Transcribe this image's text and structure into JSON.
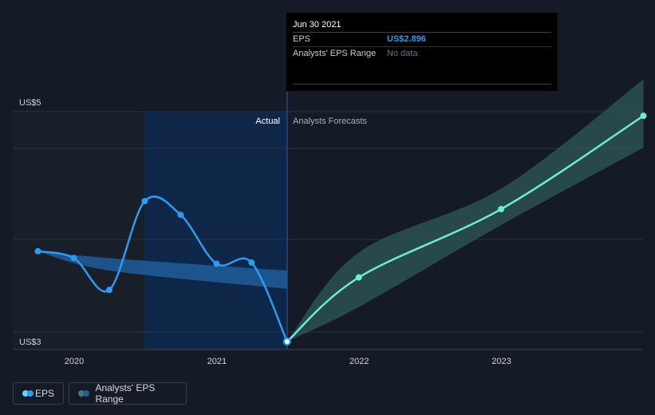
{
  "tooltip": {
    "date": "Jun 30 2021",
    "eps_label": "EPS",
    "eps_value": "US$2.896",
    "range_label": "Analysts' EPS Range",
    "range_value": "No data"
  },
  "sections": {
    "actual": "Actual",
    "forecast": "Analysts Forecasts"
  },
  "legend": {
    "eps": "EPS",
    "range": "Analysts' EPS Range"
  },
  "colors": {
    "background": "#151b26",
    "eps_line": "#2f9bf0",
    "forecast_line": "#6eecd8",
    "forecast_band": "#2f5a58",
    "range_band": "#1f5d9a",
    "actual_shade": "#0e2748",
    "past_shade": "#191f29"
  },
  "chart_data": {
    "type": "line",
    "y_axis": {
      "ticks": [
        "US$3",
        "US$5"
      ],
      "ylim": [
        2.896,
        5
      ]
    },
    "x_axis": {
      "ticks": [
        "2020",
        "2021",
        "2022",
        "2023"
      ]
    },
    "series": [
      {
        "name": "EPS",
        "kind": "actual",
        "points": [
          [
            "2019-09-30",
            3.69
          ],
          [
            "2019-12-31",
            3.63
          ],
          [
            "2020-03-31",
            3.35
          ],
          [
            "2020-06-30",
            4.13
          ],
          [
            "2020-09-30",
            4.01
          ],
          [
            "2020-12-31",
            3.58
          ],
          [
            "2021-03-31",
            3.59
          ],
          [
            "2021-06-30",
            2.896
          ]
        ]
      },
      {
        "name": "EPS",
        "kind": "forecast",
        "points": [
          [
            "2021-06-30",
            2.896
          ],
          [
            "2021-12-31",
            3.46
          ],
          [
            "2022-12-31",
            4.06
          ],
          [
            "2023-12-31",
            4.88
          ]
        ]
      },
      {
        "name": "Analysts' EPS Range",
        "kind": "forecast_range",
        "points": [
          [
            "2021-06-30",
            2.896,
            2.896
          ],
          [
            "2021-12-31",
            3.2,
            3.68
          ],
          [
            "2022-12-31",
            3.92,
            4.24
          ],
          [
            "2023-12-31",
            4.6,
            5.2
          ]
        ]
      },
      {
        "name": "Analysts' EPS Range",
        "kind": "historical_range",
        "points": [
          [
            "2019-09-30",
            3.69,
            3.69
          ],
          [
            "2020-03-31",
            3.63,
            3.52
          ],
          [
            "2021-06-30",
            3.52,
            3.36
          ]
        ]
      }
    ],
    "grid": true,
    "legend_position": "bottom-left"
  }
}
